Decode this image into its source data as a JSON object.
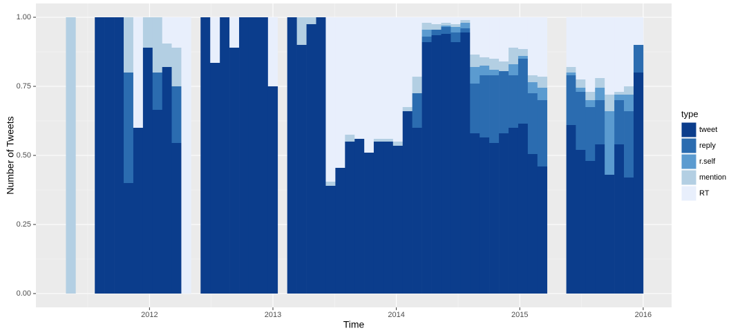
{
  "chart_data": {
    "type": "stacked_histogram",
    "xlabel": "Time",
    "ylabel": "Number of Tweets",
    "legend_title": "type",
    "legend": "right",
    "grid": true,
    "xlim": [
      2011.08,
      2016.23
    ],
    "ylim": [
      -0.05,
      1.05
    ],
    "xticks": [
      2012,
      2013,
      2014,
      2015,
      2016
    ],
    "yticks": [
      {
        "value": 0,
        "label": "0.00"
      },
      {
        "value": 0.25,
        "label": "0.25"
      },
      {
        "value": 0.5,
        "label": "0.50"
      },
      {
        "value": 0.75,
        "label": "0.75"
      },
      {
        "value": 1,
        "label": "1.00"
      }
    ],
    "bins": [
      2011.323,
      2011.401,
      2011.479,
      2011.557,
      2011.635,
      2011.713,
      2011.791,
      2011.869,
      2011.947,
      2012.025,
      2012.103,
      2012.18,
      2012.258,
      2012.336,
      2012.414,
      2012.492,
      2012.57,
      2012.648,
      2012.726,
      2012.804,
      2012.882,
      2012.96,
      2013.038,
      2013.116,
      2013.194,
      2013.272,
      2013.35,
      2013.428,
      2013.506,
      2013.584,
      2013.662,
      2013.74,
      2013.817,
      2013.895,
      2013.973,
      2014.051,
      2014.129,
      2014.207,
      2014.285,
      2014.363,
      2014.441,
      2014.519,
      2014.597,
      2014.675,
      2014.753,
      2014.831,
      2014.909,
      2014.987,
      2015.065,
      2015.143,
      2015.221,
      2015.299,
      2015.377,
      2015.454,
      2015.532,
      2015.61,
      2015.688,
      2015.766,
      2015.844,
      2015.922,
      2016.0
    ],
    "series": [
      {
        "name": "tweet",
        "color": "#0b3d8c",
        "values": [
          0,
          0,
          0,
          1,
          1,
          1,
          0.4,
          0.6,
          0.89,
          0.665,
          0.82,
          0.545,
          0,
          0,
          1,
          0.835,
          1,
          0.89,
          1,
          1,
          1,
          0.75,
          0,
          1,
          0.9,
          0.975,
          1,
          0.39,
          0.455,
          0.55,
          0.56,
          0.51,
          0.55,
          0.55,
          0.535,
          0.66,
          0.6,
          0.91,
          0.935,
          0.94,
          0.91,
          0.945,
          0.58,
          0.565,
          0.545,
          0.58,
          0.6,
          0.615,
          0.505,
          0.46,
          0,
          0,
          0.61,
          0.52,
          0.48,
          0.54,
          0.43,
          0.54,
          0.42,
          0.8
        ]
      },
      {
        "name": "reply",
        "color": "#2b6cb0",
        "values": [
          0,
          0,
          0,
          0,
          0,
          0,
          0.4,
          0,
          0,
          0.135,
          0,
          0.205,
          0,
          0,
          0,
          0,
          0,
          0,
          0,
          0,
          0,
          0,
          0,
          0,
          0,
          0,
          0,
          0,
          0,
          0,
          0,
          0,
          0,
          0,
          0,
          0,
          0.125,
          0.02,
          0.02,
          0.025,
          0.035,
          0.015,
          0.18,
          0.225,
          0.245,
          0.225,
          0.19,
          0.235,
          0.22,
          0.24,
          0,
          0,
          0.18,
          0.21,
          0.195,
          0.16,
          0,
          0.16,
          0.24,
          0.1
        ]
      },
      {
        "name": "r.self",
        "color": "#5b9bd0",
        "values": [
          0,
          0,
          0,
          0,
          0,
          0,
          0,
          0,
          0,
          0,
          0,
          0,
          0,
          0,
          0,
          0,
          0,
          0,
          0,
          0,
          0,
          0,
          0,
          0,
          0,
          0,
          0,
          0,
          0,
          0,
          0,
          0,
          0,
          0,
          0,
          0,
          0,
          0.025,
          0,
          0.005,
          0.02,
          0.02,
          0.06,
          0.035,
          0.02,
          0,
          0.04,
          0.01,
          0.04,
          0.045,
          0,
          0,
          0.01,
          0.015,
          0.025,
          0.045,
          0.23,
          0.02,
          0.06,
          0
        ]
      },
      {
        "name": "mention",
        "color": "#b3cfe3",
        "values": [
          1,
          0,
          0,
          0,
          0,
          0,
          0.2,
          0,
          0.11,
          0.2,
          0.085,
          0.14,
          0,
          0,
          0,
          0,
          0,
          0,
          0,
          0,
          0,
          0,
          0,
          0,
          0.1,
          0.025,
          0,
          0.015,
          0,
          0.025,
          0,
          0,
          0.01,
          0.01,
          0.015,
          0.015,
          0.06,
          0.025,
          0.02,
          0.01,
          0.01,
          0.01,
          0.045,
          0.03,
          0.04,
          0.035,
          0.06,
          0.025,
          0.025,
          0.04,
          0,
          0,
          0.02,
          0.03,
          0.03,
          0.035,
          0.06,
          0.01,
          0.03,
          0
        ]
      },
      {
        "name": "RT",
        "color": "#e8effc",
        "values": [
          0,
          0,
          0,
          0,
          0,
          0,
          0,
          0.4,
          0,
          0,
          0.095,
          0.11,
          1,
          0,
          0,
          0.165,
          0,
          0.11,
          0,
          0,
          0,
          0.25,
          0,
          0,
          0,
          0,
          0,
          0.595,
          0.545,
          0.425,
          0.44,
          0.49,
          0.44,
          0.44,
          0.45,
          0.325,
          0.215,
          0.02,
          0.025,
          0.02,
          0.025,
          0.01,
          0.135,
          0.145,
          0.15,
          0.16,
          0.11,
          0.115,
          0.21,
          0.215,
          0,
          0,
          0.18,
          0.225,
          0.27,
          0.22,
          0.28,
          0.27,
          0.25,
          0.1
        ]
      }
    ]
  }
}
